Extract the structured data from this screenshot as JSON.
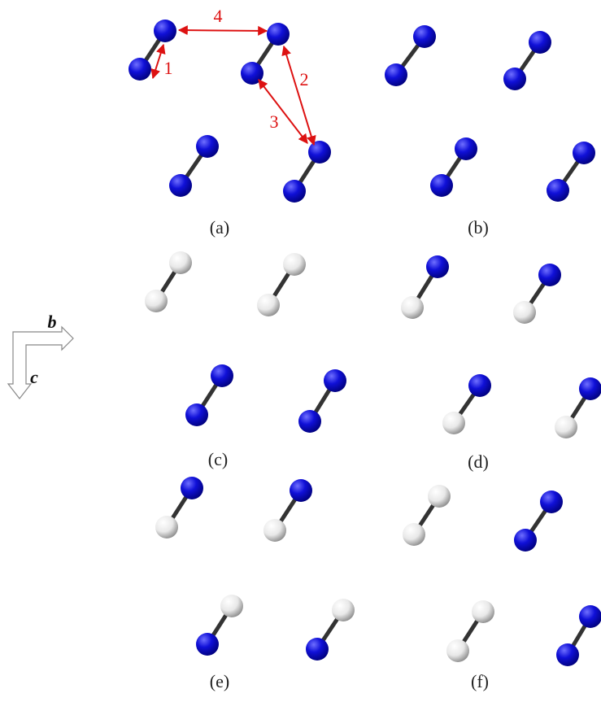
{
  "panels": [
    {
      "label": "(a)"
    },
    {
      "label": "(b)"
    },
    {
      "label": "(c)"
    },
    {
      "label": "(d)"
    },
    {
      "label": "(e)"
    },
    {
      "label": "(f)"
    }
  ],
  "distance_labels": [
    "1",
    "2",
    "3",
    "4"
  ],
  "axes": {
    "b": "b",
    "c": "c"
  }
}
